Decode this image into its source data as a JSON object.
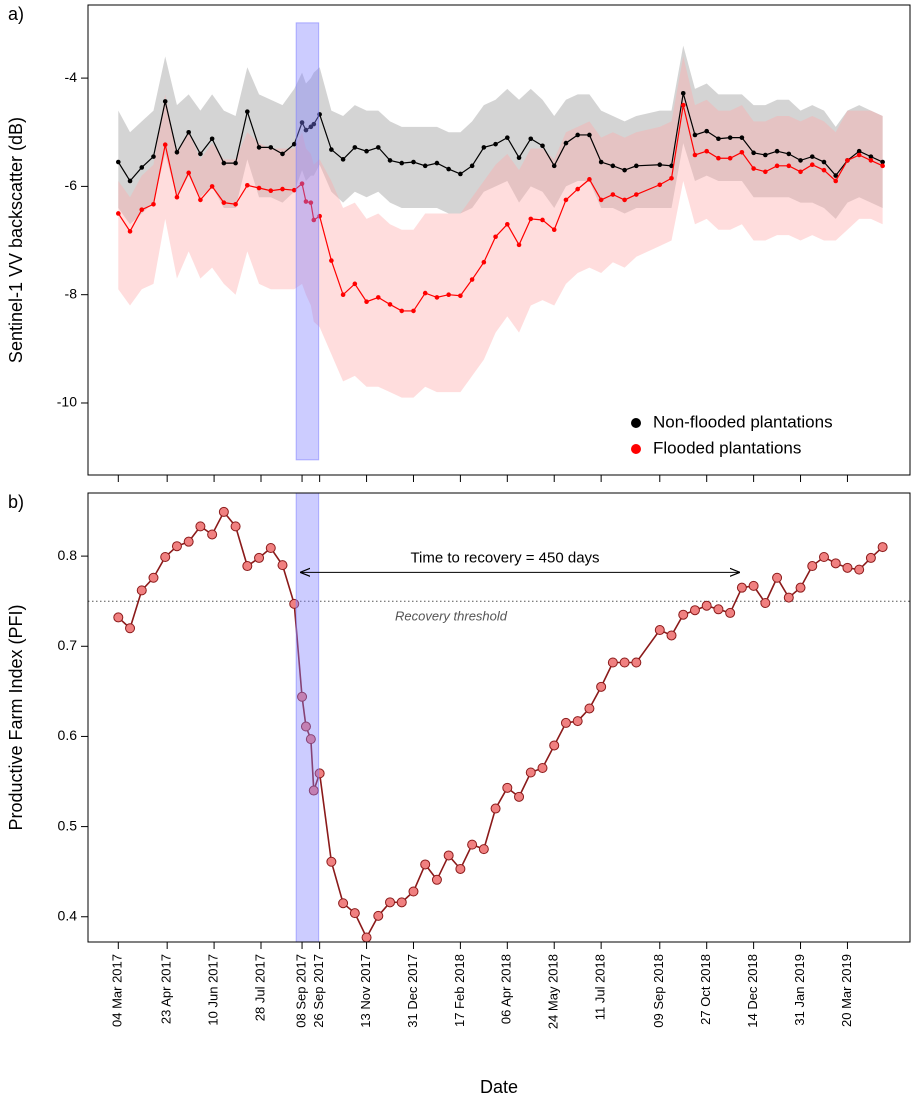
{
  "chart_data": [
    {
      "type": "line",
      "panel_label": "a)",
      "ylabel": "Sentinel-1 VV backscatter (dB)",
      "x": [
        "2017-03-04",
        "2017-03-16",
        "2017-03-28",
        "2017-04-09",
        "2017-04-21",
        "2017-05-03",
        "2017-05-15",
        "2017-05-27",
        "2017-06-08",
        "2017-06-20",
        "2017-07-02",
        "2017-07-14",
        "2017-07-26",
        "2017-08-07",
        "2017-08-19",
        "2017-08-31",
        "2017-09-08",
        "2017-09-12",
        "2017-09-17",
        "2017-09-20",
        "2017-09-26",
        "2017-10-08",
        "2017-10-20",
        "2017-11-01",
        "2017-11-13",
        "2017-11-25",
        "2017-12-07",
        "2017-12-19",
        "2017-12-31",
        "2018-01-12",
        "2018-01-24",
        "2018-02-05",
        "2018-02-17",
        "2018-03-01",
        "2018-03-13",
        "2018-03-25",
        "2018-04-06",
        "2018-04-18",
        "2018-04-30",
        "2018-05-12",
        "2018-05-24",
        "2018-06-05",
        "2018-06-17",
        "2018-06-29",
        "2018-07-11",
        "2018-07-23",
        "2018-08-04",
        "2018-08-16",
        "2018-09-09",
        "2018-09-21",
        "2018-10-03",
        "2018-10-15",
        "2018-10-27",
        "2018-11-08",
        "2018-11-20",
        "2018-12-02",
        "2018-12-14",
        "2018-12-26",
        "2019-01-07",
        "2019-01-19",
        "2019-01-31",
        "2019-02-12",
        "2019-02-24",
        "2019-03-08",
        "2019-03-20",
        "2019-04-01",
        "2019-04-13",
        "2019-04-25"
      ],
      "series": [
        {
          "name": "Non-flooded plantations",
          "color": "#000000",
          "band_color": "rgba(160,160,160,0.45)",
          "values": [
            -5.55,
            -5.9,
            -5.65,
            -5.45,
            -4.43,
            -5.37,
            -5.0,
            -5.4,
            -5.12,
            -5.57,
            -5.57,
            -4.62,
            -5.28,
            -5.28,
            -5.4,
            -5.22,
            -4.82,
            -4.96,
            -4.9,
            -4.85,
            -4.67,
            -5.32,
            -5.5,
            -5.28,
            -5.35,
            -5.28,
            -5.52,
            -5.57,
            -5.55,
            -5.62,
            -5.57,
            -5.68,
            -5.77,
            -5.62,
            -5.28,
            -5.22,
            -5.1,
            -5.47,
            -5.12,
            -5.25,
            -5.62,
            -5.2,
            -5.05,
            -5.05,
            -5.55,
            -5.62,
            -5.7,
            -5.62,
            -5.6,
            -5.62,
            -4.28,
            -5.05,
            -4.98,
            -5.12,
            -5.1,
            -5.1,
            -5.38,
            -5.42,
            -5.35,
            -5.4,
            -5.52,
            -5.45,
            -5.55,
            -5.8,
            -5.52,
            -5.35,
            -5.45,
            -5.55
          ],
          "band_upper": [
            -4.6,
            -5.0,
            -4.8,
            -4.6,
            -3.6,
            -4.5,
            -4.3,
            -4.6,
            -4.3,
            -4.6,
            -4.7,
            -3.8,
            -4.3,
            -4.4,
            -4.5,
            -4.2,
            -3.9,
            -4.1,
            -4.0,
            -3.9,
            -3.8,
            -4.6,
            -4.7,
            -4.5,
            -4.6,
            -4.6,
            -4.8,
            -4.9,
            -4.9,
            -4.9,
            -4.9,
            -5.0,
            -5.0,
            -4.8,
            -4.5,
            -4.4,
            -4.2,
            -4.4,
            -4.2,
            -4.4,
            -4.7,
            -4.4,
            -4.3,
            -4.3,
            -4.6,
            -4.7,
            -4.8,
            -4.7,
            -4.6,
            -4.6,
            -3.4,
            -4.2,
            -4.1,
            -4.3,
            -4.3,
            -4.3,
            -4.5,
            -4.5,
            -4.4,
            -4.4,
            -4.6,
            -4.5,
            -4.6,
            -4.9,
            -4.6,
            -4.5,
            -4.6,
            -4.7
          ],
          "band_lower": [
            -6.4,
            -6.7,
            -6.5,
            -6.3,
            -5.4,
            -6.2,
            -5.8,
            -6.2,
            -6.0,
            -6.4,
            -6.4,
            -5.5,
            -6.2,
            -6.2,
            -6.3,
            -6.1,
            -5.7,
            -5.9,
            -5.8,
            -5.8,
            -5.6,
            -6.1,
            -6.3,
            -6.1,
            -6.2,
            -6.1,
            -6.3,
            -6.4,
            -6.4,
            -6.4,
            -6.4,
            -6.5,
            -6.5,
            -6.4,
            -6.1,
            -6.0,
            -5.9,
            -6.3,
            -6.0,
            -6.1,
            -6.4,
            -6.0,
            -5.9,
            -5.9,
            -6.4,
            -6.4,
            -6.5,
            -6.4,
            -6.4,
            -6.4,
            -5.2,
            -5.9,
            -5.8,
            -5.9,
            -5.9,
            -5.9,
            -6.2,
            -6.2,
            -6.2,
            -6.2,
            -6.3,
            -6.3,
            -6.4,
            -6.6,
            -6.3,
            -6.2,
            -6.3,
            -6.4
          ]
        },
        {
          "name": "Flooded plantations",
          "color": "#ff0000",
          "band_color": "rgba(255,170,170,0.4)",
          "values": [
            -6.5,
            -6.83,
            -6.43,
            -6.33,
            -5.23,
            -6.2,
            -5.75,
            -6.25,
            -6.0,
            -6.3,
            -6.33,
            -5.98,
            -6.03,
            -6.08,
            -6.05,
            -6.07,
            -5.95,
            -6.28,
            -6.3,
            -6.62,
            -6.55,
            -7.37,
            -8.0,
            -7.8,
            -8.13,
            -8.05,
            -8.18,
            -8.3,
            -8.3,
            -7.97,
            -8.05,
            -8.0,
            -8.02,
            -7.72,
            -7.4,
            -6.93,
            -6.7,
            -7.08,
            -6.6,
            -6.62,
            -6.8,
            -6.25,
            -6.05,
            -5.87,
            -6.25,
            -6.15,
            -6.25,
            -6.15,
            -5.97,
            -5.85,
            -4.5,
            -5.42,
            -5.35,
            -5.48,
            -5.48,
            -5.37,
            -5.67,
            -5.73,
            -5.62,
            -5.62,
            -5.73,
            -5.6,
            -5.7,
            -5.9,
            -5.52,
            -5.42,
            -5.52,
            -5.62
          ],
          "band_upper": [
            -5.9,
            -6.2,
            -5.8,
            -5.6,
            -4.3,
            -5.4,
            -5.0,
            -5.5,
            -5.2,
            -5.5,
            -5.5,
            -5.0,
            -5.2,
            -5.3,
            -5.3,
            -5.3,
            -5.0,
            -5.3,
            -5.4,
            -5.6,
            -5.5,
            -5.9,
            -6.4,
            -6.3,
            -6.6,
            -6.5,
            -6.7,
            -6.8,
            -6.8,
            -6.5,
            -6.5,
            -6.5,
            -6.5,
            -6.2,
            -5.9,
            -5.6,
            -5.4,
            -5.7,
            -5.3,
            -5.3,
            -5.5,
            -5.0,
            -4.9,
            -4.8,
            -5.1,
            -5.0,
            -5.1,
            -5.0,
            -4.9,
            -4.8,
            -3.6,
            -4.5,
            -4.4,
            -4.6,
            -4.6,
            -4.5,
            -4.8,
            -4.8,
            -4.7,
            -4.7,
            -4.8,
            -4.7,
            -4.8,
            -5.0,
            -4.6,
            -4.6,
            -4.6,
            -4.7
          ],
          "band_lower": [
            -7.9,
            -8.2,
            -7.9,
            -7.8,
            -6.6,
            -7.7,
            -7.2,
            -7.7,
            -7.5,
            -7.8,
            -8.0,
            -7.2,
            -7.8,
            -7.9,
            -7.9,
            -7.9,
            -7.8,
            -8.0,
            -8.2,
            -8.5,
            -8.6,
            -9.1,
            -9.6,
            -9.5,
            -9.7,
            -9.7,
            -9.8,
            -9.9,
            -9.9,
            -9.7,
            -9.8,
            -9.8,
            -9.8,
            -9.5,
            -9.2,
            -8.7,
            -8.4,
            -8.7,
            -8.2,
            -8.1,
            -8.2,
            -7.8,
            -7.6,
            -7.5,
            -7.6,
            -7.4,
            -7.5,
            -7.3,
            -7.1,
            -7.0,
            -5.9,
            -6.7,
            -6.6,
            -6.8,
            -6.8,
            -6.7,
            -7.0,
            -7.0,
            -6.9,
            -6.9,
            -7.0,
            -6.9,
            -7.0,
            -7.0,
            -6.8,
            -6.6,
            -6.6,
            -6.7
          ]
        }
      ],
      "xlim": [
        "2017-02-01",
        "2019-05-23"
      ],
      "xticks": [
        "2017-03-04",
        "2017-04-23",
        "2017-06-10",
        "2017-07-28",
        "2017-09-08",
        "2017-09-26",
        "2017-11-13",
        "2017-12-31",
        "2018-02-17",
        "2018-04-06",
        "2018-05-24",
        "2018-07-11",
        "2018-09-09",
        "2018-10-27",
        "2018-12-14",
        "2019-01-31",
        "2019-03-20"
      ],
      "ylim": [
        -11.33,
        -2.65
      ],
      "yticks": [
        -4,
        -6,
        -8,
        -10
      ],
      "highlight": {
        "x": [
          "2017-09-02",
          "2017-09-25"
        ],
        "y": [
          -11.05,
          -2.98
        ],
        "color": "#8080ff"
      },
      "legend": "bottom-right",
      "grid": false
    },
    {
      "type": "line",
      "panel_label": "b)",
      "ylabel": "Productive Farm Index (PFI)",
      "xlabel": "Date",
      "x": [
        "2017-03-04",
        "2017-03-16",
        "2017-03-28",
        "2017-04-09",
        "2017-04-21",
        "2017-05-03",
        "2017-05-15",
        "2017-05-27",
        "2017-06-08",
        "2017-06-20",
        "2017-07-02",
        "2017-07-14",
        "2017-07-26",
        "2017-08-07",
        "2017-08-19",
        "2017-08-31",
        "2017-09-08",
        "2017-09-12",
        "2017-09-17",
        "2017-09-20",
        "2017-09-26",
        "2017-10-08",
        "2017-10-20",
        "2017-11-01",
        "2017-11-13",
        "2017-11-25",
        "2017-12-07",
        "2017-12-19",
        "2017-12-31",
        "2018-01-12",
        "2018-01-24",
        "2018-02-05",
        "2018-02-17",
        "2018-03-01",
        "2018-03-13",
        "2018-03-25",
        "2018-04-06",
        "2018-04-18",
        "2018-04-30",
        "2018-05-12",
        "2018-05-24",
        "2018-06-05",
        "2018-06-17",
        "2018-06-29",
        "2018-07-11",
        "2018-07-23",
        "2018-08-04",
        "2018-08-16",
        "2018-09-09",
        "2018-09-21",
        "2018-10-03",
        "2018-10-15",
        "2018-10-27",
        "2018-11-08",
        "2018-11-20",
        "2018-12-02",
        "2018-12-14",
        "2018-12-26",
        "2019-01-07",
        "2019-01-19",
        "2019-01-31",
        "2019-02-12",
        "2019-02-24",
        "2019-03-08",
        "2019-03-20",
        "2019-04-01",
        "2019-04-13",
        "2019-04-25"
      ],
      "series": [
        {
          "color": "#8b1a1a",
          "marker_color": "#f08080",
          "values": [
            0.732,
            0.72,
            0.762,
            0.776,
            0.799,
            0.811,
            0.816,
            0.833,
            0.824,
            0.849,
            0.833,
            0.789,
            0.798,
            0.809,
            0.79,
            0.747,
            0.644,
            0.611,
            0.597,
            0.54,
            0.559,
            0.461,
            0.415,
            0.404,
            0.377,
            0.401,
            0.416,
            0.416,
            0.428,
            0.458,
            0.441,
            0.468,
            0.453,
            0.48,
            0.475,
            0.52,
            0.543,
            0.533,
            0.56,
            0.565,
            0.59,
            0.615,
            0.617,
            0.631,
            0.655,
            0.682,
            0.682,
            0.682,
            0.718,
            0.712,
            0.735,
            0.74,
            0.745,
            0.741,
            0.737,
            0.765,
            0.767,
            0.748,
            0.776,
            0.754,
            0.765,
            0.789,
            0.799,
            0.792,
            0.787,
            0.785,
            0.798,
            0.81
          ]
        }
      ],
      "xlim": [
        "2017-02-01",
        "2019-05-23"
      ],
      "xticks": [
        {
          "value": "2017-03-04",
          "label": "04 Mar 2017"
        },
        {
          "value": "2017-04-23",
          "label": "23 Apr 2017"
        },
        {
          "value": "2017-06-10",
          "label": "10 Jun 2017"
        },
        {
          "value": "2017-07-28",
          "label": "28 Jul 2017"
        },
        {
          "value": "2017-09-08",
          "label": "08 Sep 2017"
        },
        {
          "value": "2017-09-26",
          "label": "26 Sep 2017"
        },
        {
          "value": "2017-11-13",
          "label": "13 Nov 2017"
        },
        {
          "value": "2017-12-31",
          "label": "31 Dec 2017"
        },
        {
          "value": "2018-02-17",
          "label": "17 Feb 2018"
        },
        {
          "value": "2018-04-06",
          "label": "06 Apr 2018"
        },
        {
          "value": "2018-05-24",
          "label": "24 May 2018"
        },
        {
          "value": "2018-07-11",
          "label": "11 Jul 2018"
        },
        {
          "value": "2018-09-09",
          "label": "09 Sep 2018"
        },
        {
          "value": "2018-10-27",
          "label": "27 Oct 2018"
        },
        {
          "value": "2018-12-14",
          "label": "14 Dec 2018"
        },
        {
          "value": "2019-01-31",
          "label": "31 Jan 2019"
        },
        {
          "value": "2019-03-20",
          "label": "20 Mar 2019"
        }
      ],
      "ylim": [
        0.372,
        0.87
      ],
      "yticks": [
        0.4,
        0.5,
        0.6,
        0.7,
        0.8
      ],
      "highlight": {
        "x": [
          "2017-09-02",
          "2017-09-25"
        ],
        "color": "#8080ff"
      },
      "threshold": {
        "value": 0.75,
        "label": "Recovery threshold"
      },
      "arrow": {
        "x": [
          "2017-09-06",
          "2018-11-30"
        ],
        "y": 0.782,
        "label": "Time to recovery = 450 days"
      },
      "grid": false
    }
  ]
}
